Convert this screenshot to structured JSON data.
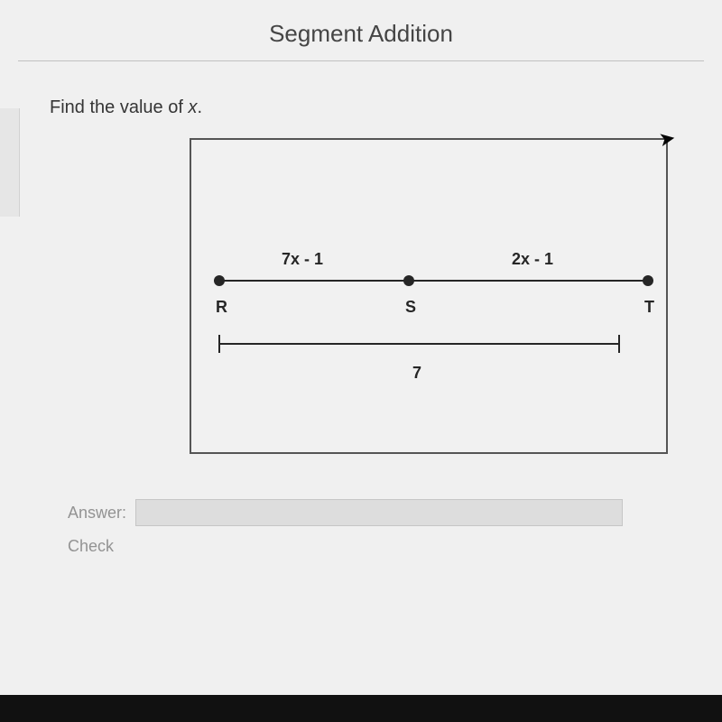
{
  "header": {
    "title": "Segment Addition"
  },
  "prompt": {
    "text_prefix": "Find the value of ",
    "variable": "x",
    "text_suffix": "."
  },
  "diagram": {
    "segment_RS_label": "7x - 1",
    "segment_ST_label": "2x - 1",
    "point_R": "R",
    "point_S": "S",
    "point_T": "T",
    "total_label": "7",
    "border_color": "#555555",
    "line_color": "#222222",
    "background_color": "#ffffff",
    "label_fontsize": 18,
    "point_radius": 6
  },
  "answer": {
    "label": "Answer:",
    "check_label": "Check",
    "value": ""
  },
  "colors": {
    "page_bg": "#fdfdfd",
    "text_muted": "#999999",
    "text_primary": "#333333",
    "divider": "#c9c9c9"
  },
  "typography": {
    "title_fontsize": 26,
    "prompt_fontsize": 20,
    "font_family": "Arial"
  }
}
